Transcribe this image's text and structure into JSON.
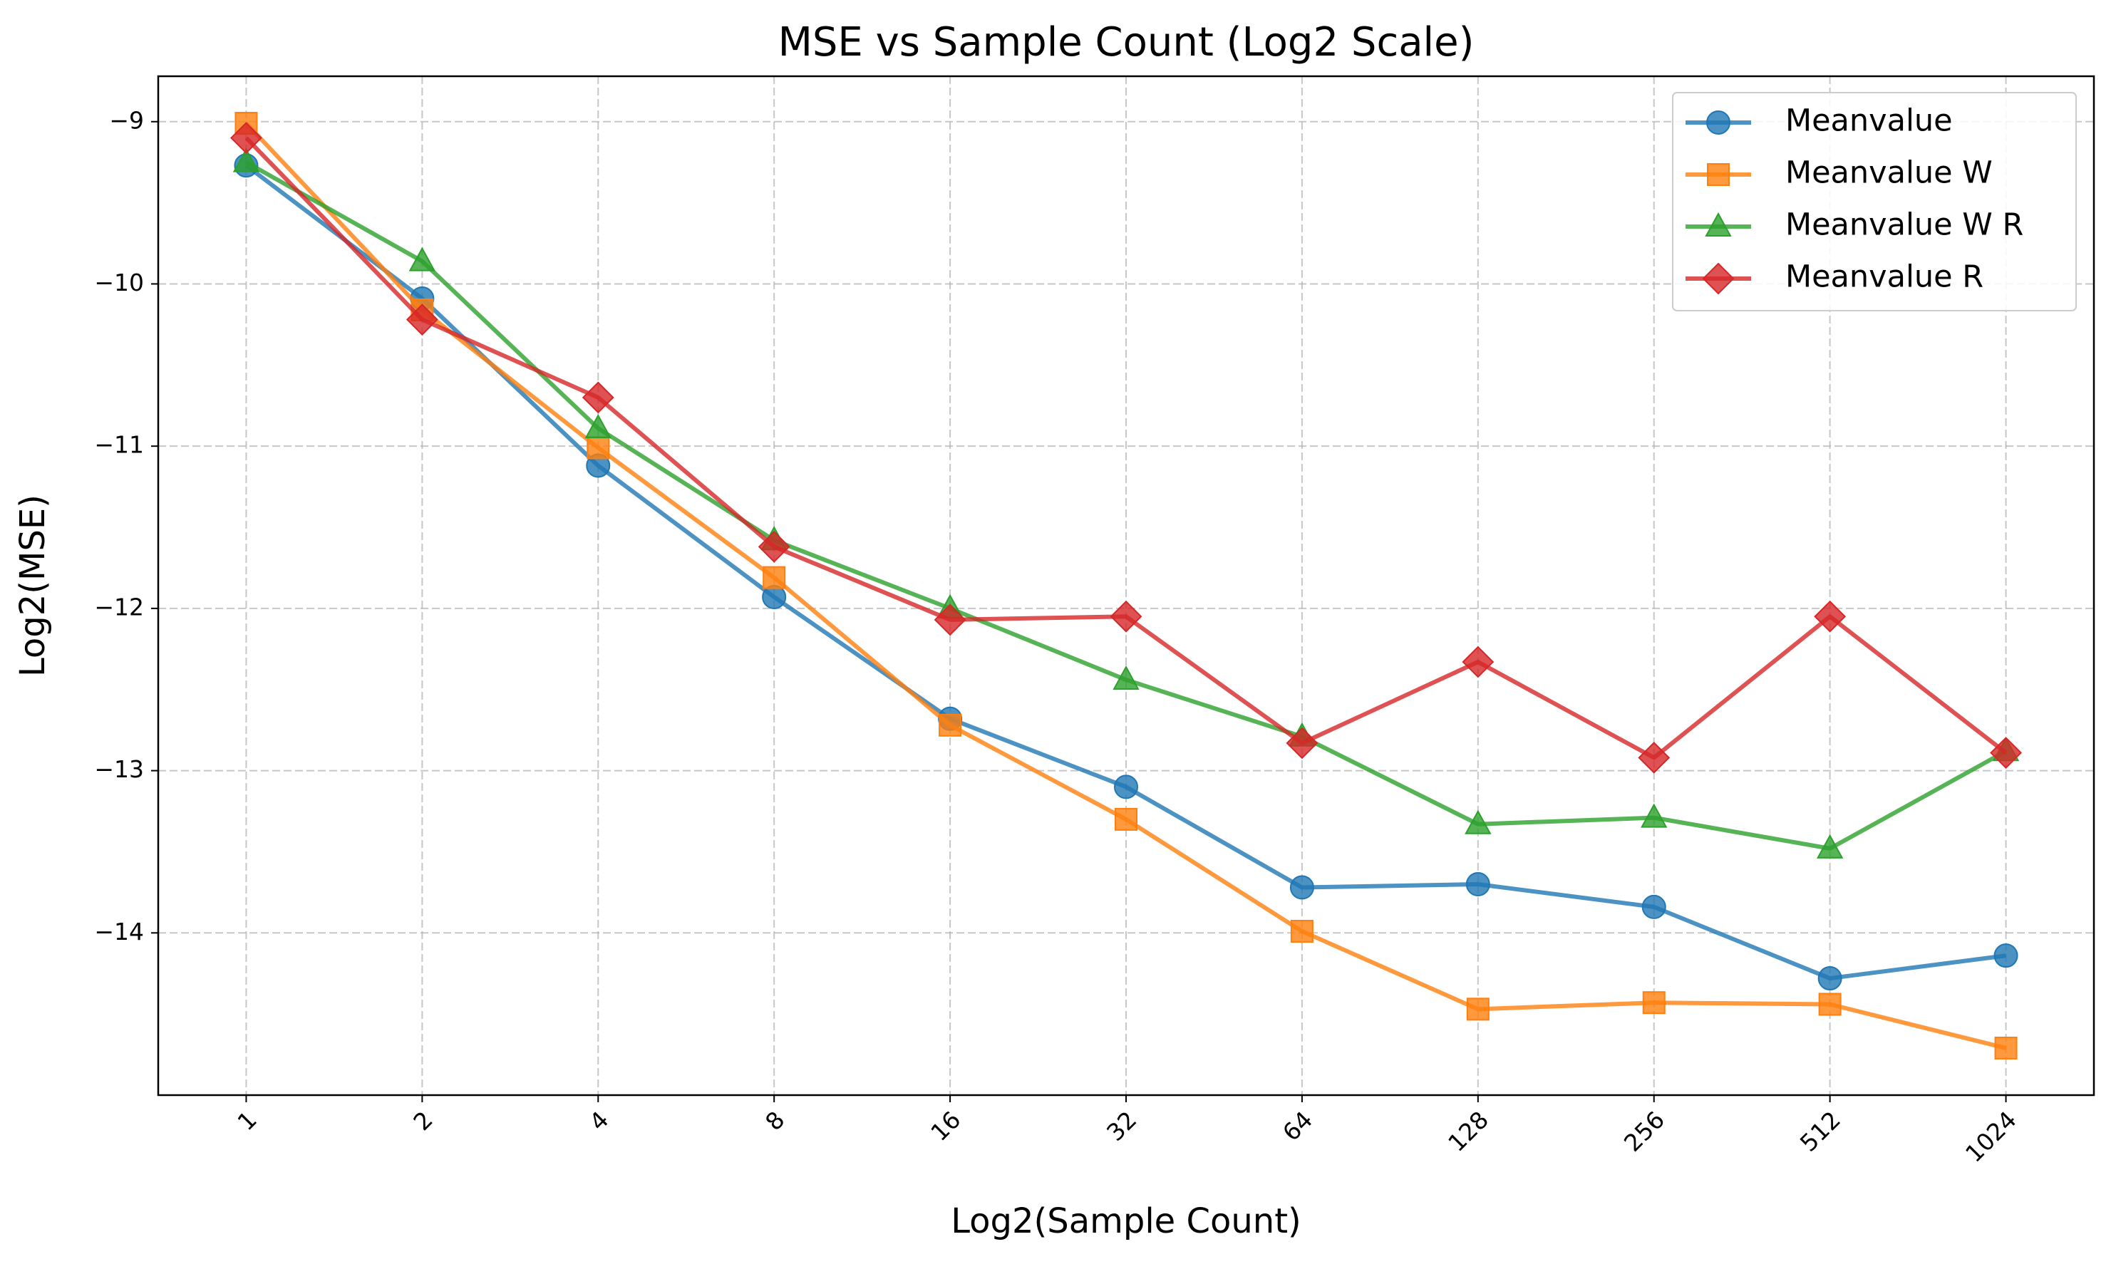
{
  "chart_data": {
    "type": "line",
    "title": "MSE vs Sample Count (Log2 Scale)",
    "xlabel": "Log2(Sample Count)",
    "ylabel": "Log2(MSE)",
    "categories": [
      "1",
      "2",
      "4",
      "8",
      "16",
      "32",
      "64",
      "128",
      "256",
      "512",
      "1024"
    ],
    "x": [
      0,
      1,
      2,
      3,
      4,
      5,
      6,
      7,
      8,
      9,
      10
    ],
    "xlim": [
      -0.5,
      10.5
    ],
    "ylim": [
      -15.0,
      -8.72
    ],
    "yticks": [
      -9,
      -10,
      -11,
      -12,
      -13,
      -14
    ],
    "ytick_labels": [
      "−9",
      "−10",
      "−11",
      "−12",
      "−13",
      "−14"
    ],
    "grid": true,
    "legend_position": "top-right",
    "series": [
      {
        "name": "Meanvalue",
        "color": "#1f77b4",
        "marker": "circle",
        "values": [
          -9.27,
          -10.09,
          -11.12,
          -11.93,
          -12.68,
          -13.1,
          -13.72,
          -13.7,
          -13.84,
          -14.28,
          -14.14
        ]
      },
      {
        "name": "Meanvalue W",
        "color": "#ff7f0e",
        "marker": "square",
        "values": [
          -9.01,
          -10.16,
          -11.01,
          -11.81,
          -12.72,
          -13.3,
          -13.99,
          -14.47,
          -14.43,
          -14.44,
          -14.71
        ]
      },
      {
        "name": "Meanvalue W R",
        "color": "#2ca02c",
        "marker": "triangle",
        "values": [
          -9.25,
          -9.86,
          -10.89,
          -11.58,
          -12.0,
          -12.44,
          -12.79,
          -13.33,
          -13.29,
          -13.48,
          -12.88
        ]
      },
      {
        "name": "Meanvalue R",
        "color": "#d62728",
        "marker": "diamond",
        "values": [
          -9.1,
          -10.22,
          -10.7,
          -11.62,
          -12.07,
          -12.05,
          -12.83,
          -12.33,
          -12.92,
          -12.05,
          -12.89
        ]
      }
    ]
  }
}
